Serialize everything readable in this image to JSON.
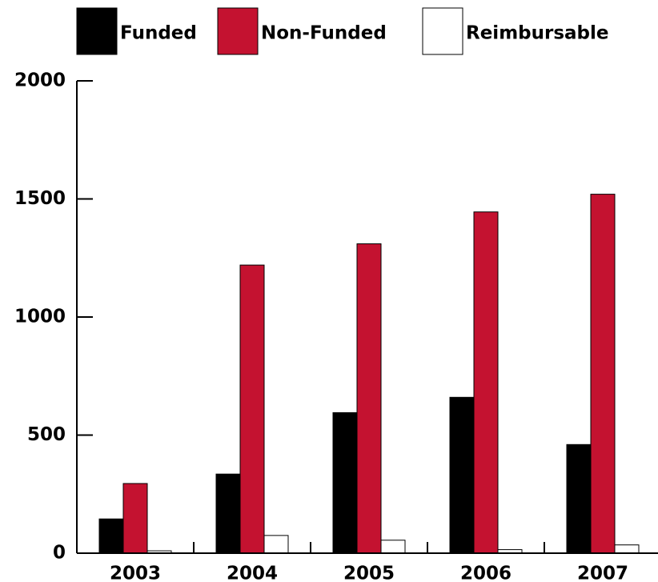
{
  "chart_data": {
    "type": "bar",
    "categories": [
      "2003",
      "2004",
      "2005",
      "2006",
      "2007"
    ],
    "series": [
      {
        "name": "Funded",
        "color": "#000000",
        "values": [
          145,
          335,
          595,
          660,
          460
        ]
      },
      {
        "name": "Non-Funded",
        "color": "#c41230",
        "values": [
          295,
          1220,
          1310,
          1445,
          1520
        ]
      },
      {
        "name": "Reimbursable",
        "color": "#ffffff",
        "values": [
          10,
          75,
          55,
          15,
          35
        ]
      }
    ],
    "ylim": [
      0,
      2000
    ],
    "yticks": [
      0,
      500,
      1000,
      1500,
      2000
    ],
    "grid": false,
    "legend": "top"
  }
}
